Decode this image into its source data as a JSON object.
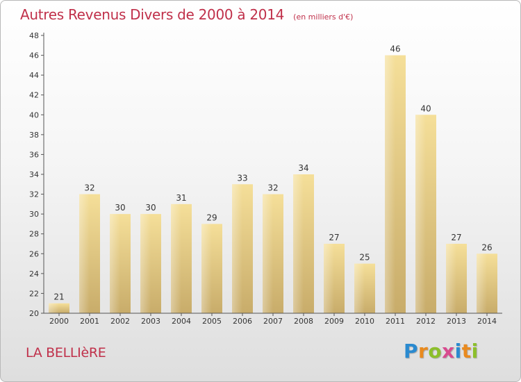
{
  "header": {
    "title": "Autres Revenus Divers de 2000 à 2014",
    "unit": "(en milliers d'€)"
  },
  "location": "LA BELLIèRE",
  "logo": {
    "text": "Proxiti",
    "letters": [
      {
        "ch": "P",
        "color": "#2a8ad0"
      },
      {
        "ch": "r",
        "color": "#e98a1e"
      },
      {
        "ch": "o",
        "color": "#8cbf2b"
      },
      {
        "ch": "x",
        "color": "#d84a8e"
      },
      {
        "ch": "i",
        "color": "#2a8ad0"
      },
      {
        "ch": "t",
        "color": "#e98a1e"
      },
      {
        "ch": "i",
        "color": "#8cbf2b"
      }
    ]
  },
  "colors": {
    "title": "#c0304a",
    "bar_light": "#f5df99",
    "bar_dark": "#c8ac6a",
    "axis": "#555555"
  },
  "chart_data": {
    "type": "bar",
    "categories": [
      "2000",
      "2001",
      "2002",
      "2003",
      "2004",
      "2005",
      "2006",
      "2007",
      "2008",
      "2009",
      "2010",
      "2011",
      "2012",
      "2013",
      "2014"
    ],
    "values": [
      21,
      32,
      30,
      30,
      31,
      29,
      33,
      32,
      34,
      27,
      25,
      46,
      40,
      27,
      26
    ],
    "ylim": [
      20,
      48
    ],
    "yticks": [
      20,
      22,
      24,
      26,
      28,
      30,
      32,
      34,
      36,
      38,
      40,
      42,
      44,
      46,
      48
    ],
    "grid": false,
    "data_labels": true
  }
}
